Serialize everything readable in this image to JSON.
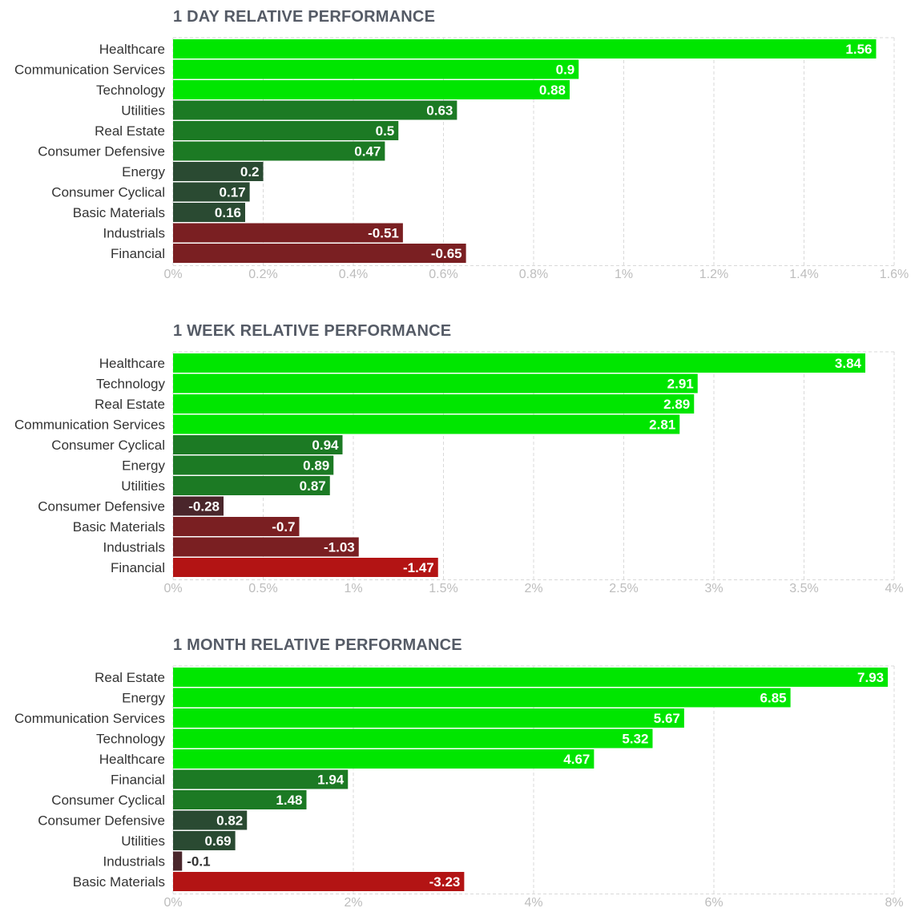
{
  "colors": {
    "pos_strong": "#00e600",
    "pos_mid": "#1c7a24",
    "pos_weak": "#2a4a32",
    "neg_weak": "#4a262b",
    "neg_mid": "#7a1f22",
    "neg_strong": "#b31414",
    "title": "#555b66",
    "label": "#333333",
    "tick": "#bdbdbd",
    "grid": "#d9d9d9"
  },
  "chart_data": [
    {
      "type": "bar",
      "orientation": "horizontal",
      "title": "1 DAY RELATIVE PERFORMANCE",
      "categories": [
        "Healthcare",
        "Communication Services",
        "Technology",
        "Utilities",
        "Real Estate",
        "Consumer Defensive",
        "Energy",
        "Consumer Cyclical",
        "Basic Materials",
        "Industrials",
        "Financial"
      ],
      "values": [
        1.56,
        0.9,
        0.88,
        0.63,
        0.5,
        0.47,
        0.2,
        0.17,
        0.16,
        -0.51,
        -0.65
      ],
      "value_labels": [
        "1.56",
        "0.9",
        "0.88",
        "0.63",
        "0.5",
        "0.47",
        "0.2",
        "0.17",
        "0.16",
        "-0.51",
        "-0.65"
      ],
      "xlim": [
        0,
        1.6
      ],
      "ticks": [
        0,
        0.2,
        0.4,
        0.6,
        0.8,
        1.0,
        1.2,
        1.4,
        1.6
      ],
      "tick_labels": [
        "0%",
        "0.2%",
        "0.4%",
        "0.6%",
        "0.8%",
        "1%",
        "1.2%",
        "1.4%",
        "1.6%"
      ],
      "grid": true,
      "bar_length": "absolute value"
    },
    {
      "type": "bar",
      "orientation": "horizontal",
      "title": "1 WEEK RELATIVE PERFORMANCE",
      "categories": [
        "Healthcare",
        "Technology",
        "Real Estate",
        "Communication Services",
        "Consumer Cyclical",
        "Energy",
        "Utilities",
        "Consumer Defensive",
        "Basic Materials",
        "Industrials",
        "Financial"
      ],
      "values": [
        3.84,
        2.91,
        2.89,
        2.81,
        0.94,
        0.89,
        0.87,
        -0.28,
        -0.7,
        -1.03,
        -1.47
      ],
      "value_labels": [
        "3.84",
        "2.91",
        "2.89",
        "2.81",
        "0.94",
        "0.89",
        "0.87",
        "-0.28",
        "-0.7",
        "-1.03",
        "-1.47"
      ],
      "xlim": [
        0,
        4
      ],
      "ticks": [
        0,
        0.5,
        1,
        1.5,
        2,
        2.5,
        3,
        3.5,
        4
      ],
      "tick_labels": [
        "0%",
        "0.5%",
        "1%",
        "1.5%",
        "2%",
        "2.5%",
        "3%",
        "3.5%",
        "4%"
      ],
      "grid": true,
      "bar_length": "absolute value"
    },
    {
      "type": "bar",
      "orientation": "horizontal",
      "title": "1 MONTH RELATIVE PERFORMANCE",
      "categories": [
        "Real Estate",
        "Energy",
        "Communication Services",
        "Technology",
        "Healthcare",
        "Financial",
        "Consumer Cyclical",
        "Consumer Defensive",
        "Utilities",
        "Industrials",
        "Basic Materials"
      ],
      "values": [
        7.93,
        6.85,
        5.67,
        5.32,
        4.67,
        1.94,
        1.48,
        0.82,
        0.69,
        -0.1,
        -3.23
      ],
      "value_labels": [
        "7.93",
        "6.85",
        "5.67",
        "5.32",
        "4.67",
        "1.94",
        "1.48",
        "0.82",
        "0.69",
        "-0.1",
        "-3.23"
      ],
      "xlim": [
        0,
        8
      ],
      "ticks": [
        0,
        2,
        4,
        6,
        8
      ],
      "tick_labels": [
        "0%",
        "2%",
        "4%",
        "6%",
        "8%"
      ],
      "grid": true,
      "bar_length": "absolute value"
    }
  ]
}
